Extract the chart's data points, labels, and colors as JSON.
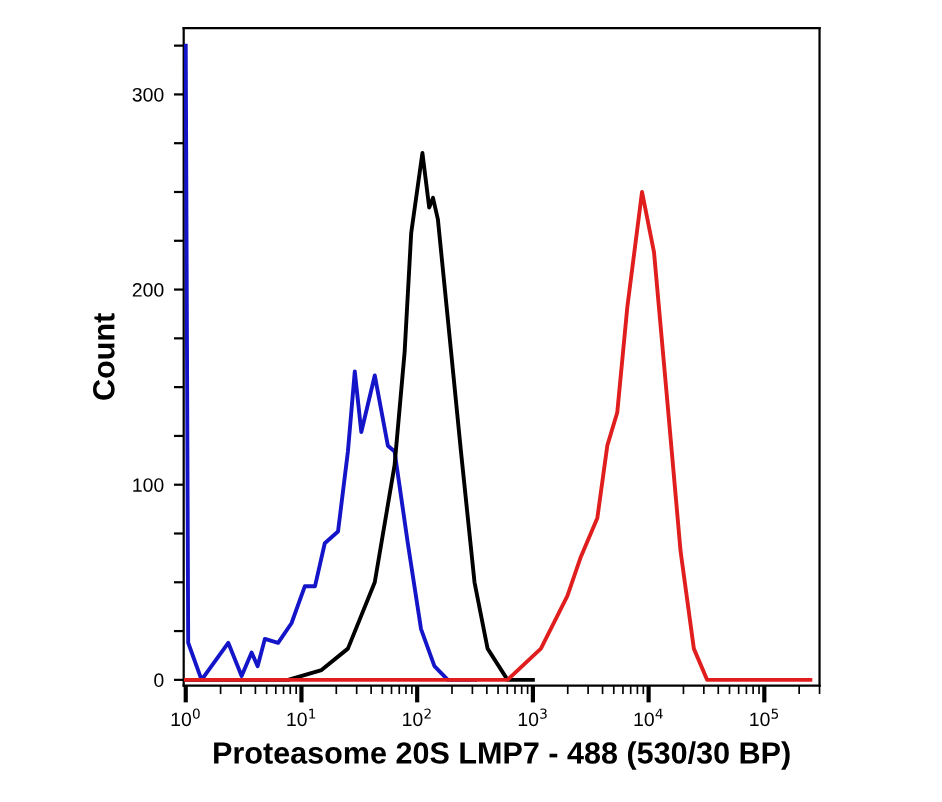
{
  "chart_data": {
    "type": "line",
    "xlabel": "Proteasome 20S LMP7 - 488 (530/30 BP)",
    "ylabel": "Count",
    "log": "x",
    "xlim": [
      0.96,
      300000
    ],
    "ylim": [
      -3,
      334
    ],
    "xticks": [
      {
        "value": 1,
        "label": "10$^{0}$"
      },
      {
        "value": 10,
        "label": "10$^{1}$"
      },
      {
        "value": 100,
        "label": "10$^{2}$"
      },
      {
        "value": 1000,
        "label": "10$^{3}$"
      },
      {
        "value": 10000,
        "label": "10$^{4}$"
      },
      {
        "value": 100000,
        "label": "10$^{5}$"
      }
    ],
    "yticks": [
      0,
      {
        "value": 25,
        "label": null
      },
      {
        "value": 50,
        "label": null
      },
      {
        "value": 75,
        "label": null
      },
      100,
      {
        "value": 125,
        "label": null
      },
      {
        "value": 150,
        "label": null
      },
      {
        "value": 175,
        "label": null
      },
      200,
      {
        "value": 225,
        "label": null
      },
      {
        "value": 250,
        "label": null
      },
      {
        "value": 275,
        "label": null
      },
      300,
      {
        "value": 325,
        "label": null
      }
    ],
    "grid": false,
    "marker": "none",
    "line_style": "solid",
    "series": [
      {
        "color": "#1414c8",
        "x": [
          1.0,
          1.05,
          1.37,
          2.33,
          3.04,
          3.71,
          4.18,
          4.83,
          6.28,
          8.2,
          10.7,
          13.1,
          15.9,
          20.7,
          25.2,
          28.9,
          32.9,
          43,
          55.8,
          63.8,
          83,
          108,
          141,
          184,
          316
        ],
        "values": [
          325,
          19,
          0,
          19,
          2,
          14,
          7,
          21,
          19,
          29,
          48,
          48,
          70,
          76,
          117,
          158,
          127,
          156,
          120,
          117,
          70,
          26,
          7,
          0,
          0
        ]
      },
      {
        "color": "#000000",
        "x": [
          1.0,
          7.66,
          14.9,
          25.2,
          43,
          63.8,
          77.9,
          88.8,
          111,
          127,
          137,
          151,
          184,
          239,
          313,
          406,
          604,
          1000
        ],
        "values": [
          0,
          0,
          5,
          16,
          50,
          110,
          168,
          229,
          270,
          242,
          247,
          236,
          185,
          117,
          50,
          16,
          0,
          0
        ]
      },
      {
        "color": "#e01e1e",
        "x": [
          1.0,
          604,
          1172,
          1987,
          2594,
          3606,
          4395,
          5358,
          6546,
          8770,
          11140,
          14450,
          18880,
          24600,
          32000,
          250000
        ],
        "values": [
          0,
          0,
          16,
          43,
          63,
          83,
          120,
          137,
          191,
          250,
          219,
          144,
          66,
          16,
          0,
          0
        ]
      }
    ]
  }
}
